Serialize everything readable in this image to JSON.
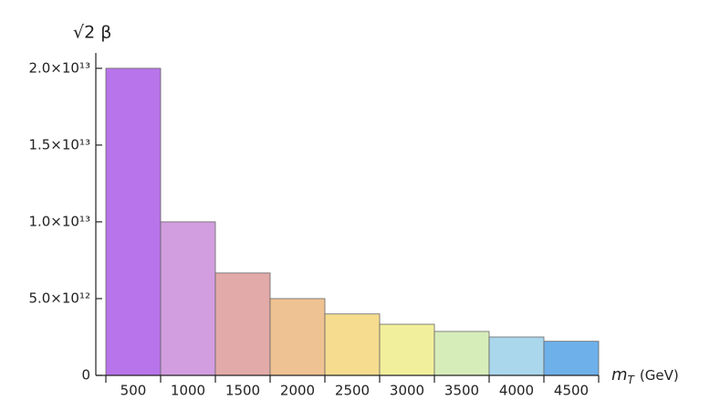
{
  "chart_data": {
    "type": "bar",
    "y_label": "√2 β",
    "x_label": {
      "symbol": "m",
      "subscript": "T",
      "unit": "(GeV)"
    },
    "categories": [
      "500",
      "1000",
      "1500",
      "2000",
      "2500",
      "3000",
      "3500",
      "4000",
      "4500"
    ],
    "values": [
      20000000000000.0,
      10000000000000.0,
      6670000000000.0,
      5000000000000.0,
      4000000000000.0,
      3330000000000.0,
      2860000000000.0,
      2500000000000.0,
      2220000000000.0
    ],
    "colors": [
      "#b874ea",
      "#d29ee0",
      "#e2aaa8",
      "#efc293",
      "#f5dc8f",
      "#f2ef9c",
      "#d7edb9",
      "#abd7ec",
      "#6eb0ea"
    ],
    "ylim": [
      0,
      21000000000000.0
    ],
    "yticks": [
      0,
      {
        "value": 5000000000000.0,
        "label": "5.0×10¹²"
      },
      {
        "value": 10000000000000.0,
        "label": "1.0×10¹³"
      },
      {
        "value": 15000000000000.0,
        "label": "1.5×10¹³"
      },
      {
        "value": 20000000000000.0,
        "label": "2.0×10¹³"
      }
    ]
  }
}
